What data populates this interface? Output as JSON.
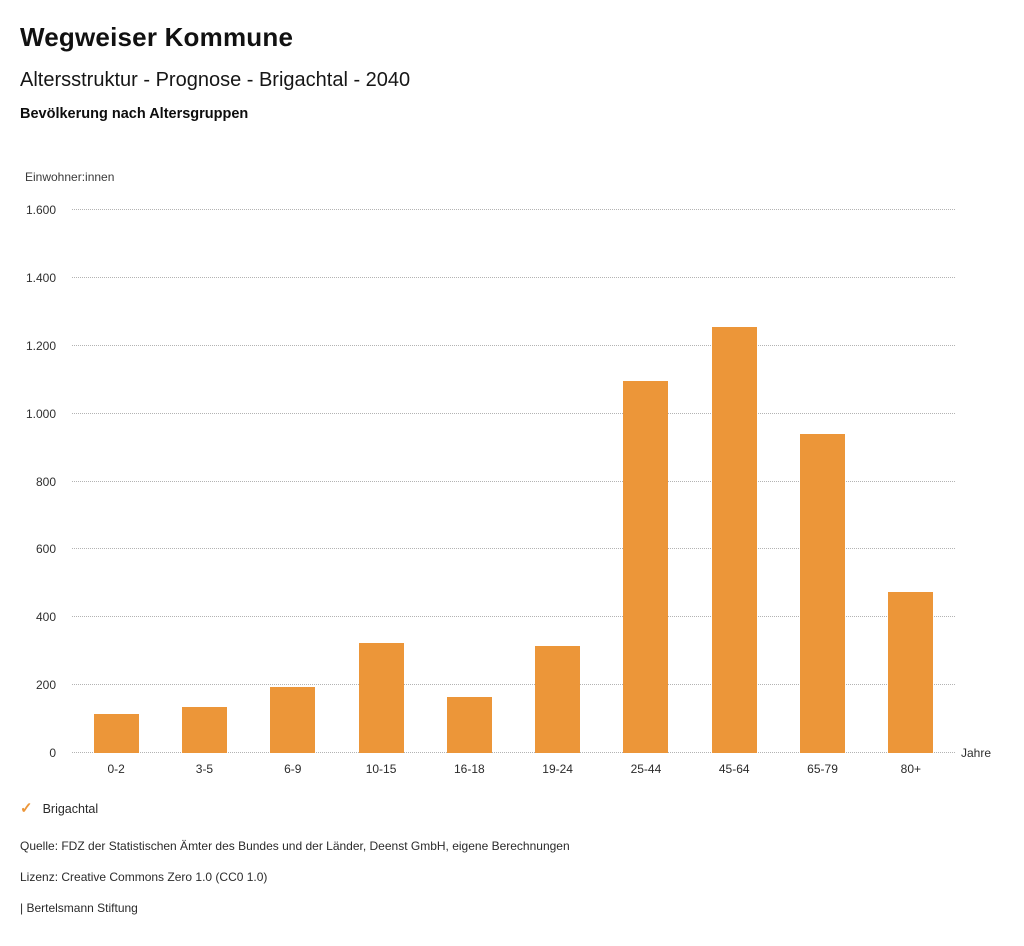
{
  "header": {
    "title": "Wegweiser Kommune",
    "subtitle": "Altersstruktur - Prognose - Brigachtal - 2040",
    "chart_title": "Bevölkerung nach Altersgruppen"
  },
  "chart_data": {
    "type": "bar",
    "title": "Bevölkerung nach Altersgruppen",
    "unit_label": "Einwohner:innen",
    "xlabel": "Jahre",
    "ylabel": "Einwohner:innen",
    "categories": [
      "0-2",
      "3-5",
      "6-9",
      "10-15",
      "16-18",
      "19-24",
      "25-44",
      "45-64",
      "65-79",
      "80+"
    ],
    "series": [
      {
        "name": "Brigachtal",
        "values": [
          115,
          135,
          195,
          325,
          165,
          315,
          1095,
          1255,
          940,
          475
        ]
      }
    ],
    "ylim": [
      0,
      1600
    ],
    "ytick_step": 200,
    "ytick_labels": [
      "0",
      "200",
      "400",
      "600",
      "800",
      "1.000",
      "1.200",
      "1.400",
      "1.600"
    ],
    "grid": "horizontal-dotted",
    "legend_position": "bottom-left",
    "bar_color": "#EC9639"
  },
  "legend": {
    "items": [
      {
        "label": "Brigachtal",
        "marker": "check",
        "color": "#EC9639"
      }
    ]
  },
  "footer": {
    "source": "Quelle: FDZ der Statistischen Ämter des Bundes und der Länder, Deenst GmbH, eigene Berechnungen",
    "license": "Lizenz: Creative Commons Zero 1.0 (CC0 1.0)",
    "attribution": "| Bertelsmann Stiftung"
  },
  "colors": {
    "accent": "#EC9639",
    "grid": "#b3b3b3",
    "text": "#1d1d1b"
  }
}
